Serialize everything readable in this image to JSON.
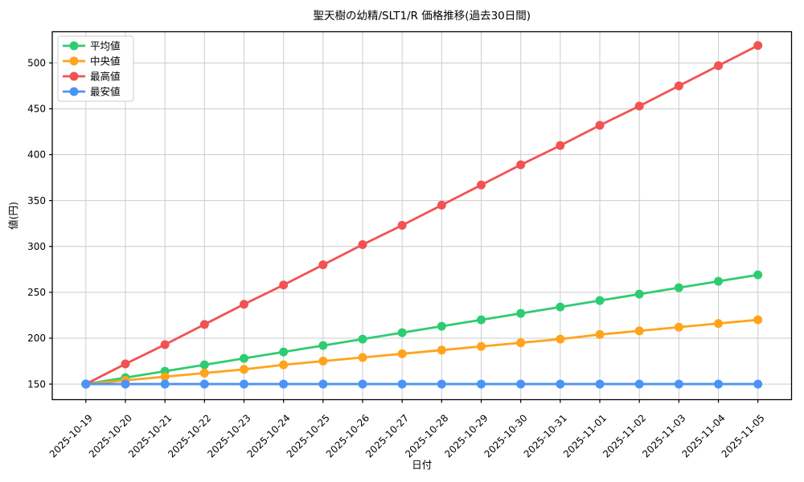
{
  "chart_data": {
    "type": "line",
    "title": "聖天樹の幼精/SLT1/R 価格推移(過去30日間)",
    "xlabel": "日付",
    "ylabel": "値(円)",
    "x": [
      "2025-10-19",
      "2025-10-20",
      "2025-10-21",
      "2025-10-22",
      "2025-10-23",
      "2025-10-24",
      "2025-10-25",
      "2025-10-26",
      "2025-10-27",
      "2025-10-28",
      "2025-10-29",
      "2025-10-30",
      "2025-10-31",
      "2025-11-01",
      "2025-11-02",
      "2025-11-03",
      "2025-11-04",
      "2025-11-05"
    ],
    "series": [
      {
        "id": "average",
        "name": "平均値",
        "color": "#2ecc71",
        "values": [
          150,
          157,
          164,
          171,
          178,
          185,
          192,
          199,
          206,
          213,
          220,
          227,
          234,
          241,
          248,
          255,
          262,
          269
        ]
      },
      {
        "id": "median",
        "name": "中央値",
        "color": "#ffa41b",
        "values": [
          150,
          154,
          158,
          162,
          166,
          171,
          175,
          179,
          183,
          187,
          191,
          195,
          199,
          204,
          208,
          212,
          216,
          220
        ]
      },
      {
        "id": "max",
        "name": "最高値",
        "color": "#f25252",
        "values": [
          150,
          172,
          193,
          215,
          237,
          258,
          280,
          302,
          323,
          345,
          367,
          389,
          410,
          432,
          453,
          475,
          497,
          519
        ]
      },
      {
        "id": "min",
        "name": "最安値",
        "color": "#4a94f8",
        "values": [
          150,
          150,
          150,
          150,
          150,
          150,
          150,
          150,
          150,
          150,
          150,
          150,
          150,
          150,
          150,
          150,
          150,
          150
        ]
      }
    ],
    "yticks": [
      150,
      200,
      250,
      300,
      350,
      400,
      450,
      500
    ],
    "ylim": [
      133,
      534
    ],
    "grid": true,
    "grid_color": "#cccccc",
    "background": "#ffffff",
    "legend_position": "upper-left",
    "marker": "circle",
    "x_tick_rotation": 45
  }
}
